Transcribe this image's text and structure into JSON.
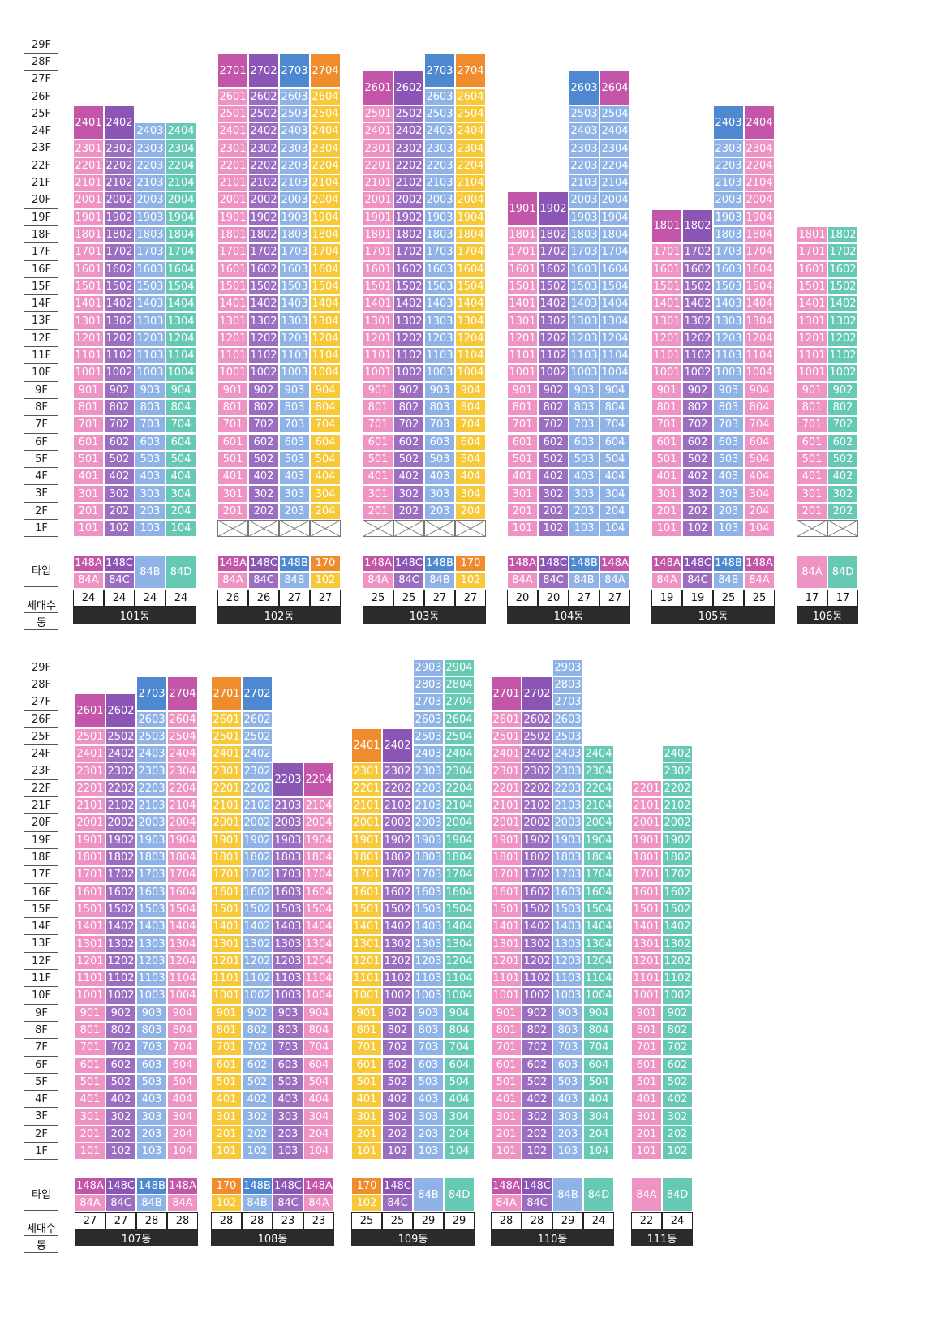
{
  "colors": {
    "pink": "#ef92c4",
    "purple": "#9b6ec2",
    "blue": "#8fb3e6",
    "teal": "#66c9b4",
    "yellow": "#f7c837",
    "orange": "#f19a3e",
    "purple_dark": "#8b55b5",
    "blue_dark": "#4d88d1",
    "magenta_dark": "#c356a8",
    "orange_dark": "#ef8c2d"
  },
  "floor_labels": [
    "29F",
    "28F",
    "27F",
    "26F",
    "25F",
    "24F",
    "23F",
    "22F",
    "21F",
    "20F",
    "19F",
    "18F",
    "17F",
    "16F",
    "15F",
    "14F",
    "13F",
    "12F",
    "11F",
    "10F",
    "9F",
    "8F",
    "7F",
    "6F",
    "5F",
    "4F",
    "3F",
    "2F",
    "1F"
  ],
  "row_labels": {
    "type": "타입",
    "households": "세대수",
    "building": "동"
  },
  "buildings_top": [
    {
      "name": "101동",
      "lines": [
        {
          "top_floor": 25,
          "min_floor": 1,
          "color": "pink",
          "top_color": "magenta_dark",
          "top_double": true,
          "type": [
            "148A",
            "84A"
          ],
          "count": "24"
        },
        {
          "top_floor": 25,
          "min_floor": 1,
          "color": "purple",
          "top_color": "purple_dark",
          "top_double": true,
          "type": [
            "148C",
            "84C"
          ],
          "count": "24"
        },
        {
          "top_floor": 24,
          "min_floor": 1,
          "color": "blue",
          "top_color": null,
          "top_double": false,
          "type": [
            "84B"
          ],
          "count": "24"
        },
        {
          "top_floor": 24,
          "min_floor": 1,
          "color": "teal",
          "top_color": null,
          "top_double": false,
          "type": [
            "84D"
          ],
          "count": "24"
        }
      ]
    },
    {
      "name": "102동",
      "lines": [
        {
          "top_floor": 28,
          "min_floor": 2,
          "color": "pink",
          "top_color": "magenta_dark",
          "top_double": true,
          "type": [
            "148A",
            "84A"
          ],
          "count": "26"
        },
        {
          "top_floor": 28,
          "min_floor": 2,
          "color": "purple",
          "top_color": "purple_dark",
          "top_double": true,
          "type": [
            "148C",
            "84C"
          ],
          "count": "26"
        },
        {
          "top_floor": 28,
          "min_floor": 2,
          "color": "blue",
          "top_color": "blue_dark",
          "top_double": true,
          "type": [
            "148B",
            "84B"
          ],
          "count": "27"
        },
        {
          "top_floor": 28,
          "min_floor": 2,
          "color": "yellow",
          "top_color": "orange_dark",
          "top_double": true,
          "type": [
            "170",
            "102"
          ],
          "count": "27"
        }
      ]
    },
    {
      "name": "103동",
      "lines": [
        {
          "top_floor": 27,
          "min_floor": 2,
          "color": "pink",
          "top_color": "magenta_dark",
          "top_double": true,
          "type": [
            "148A",
            "84A"
          ],
          "count": "25"
        },
        {
          "top_floor": 27,
          "min_floor": 2,
          "color": "purple",
          "top_color": "purple_dark",
          "top_double": true,
          "type": [
            "148C",
            "84C"
          ],
          "count": "25"
        },
        {
          "top_floor": 28,
          "min_floor": 2,
          "color": "blue",
          "top_color": "blue_dark",
          "top_double": true,
          "type": [
            "148B",
            "84B"
          ],
          "count": "27"
        },
        {
          "top_floor": 28,
          "min_floor": 2,
          "color": "yellow",
          "top_color": "orange_dark",
          "top_double": true,
          "type": [
            "170",
            "102"
          ],
          "count": "27"
        }
      ]
    },
    {
      "name": "104동",
      "lines": [
        {
          "top_floor": 20,
          "min_floor": 1,
          "color": "pink",
          "top_color": "magenta_dark",
          "top_double": true,
          "type": [
            "148A",
            "84A"
          ],
          "count": "20"
        },
        {
          "top_floor": 20,
          "min_floor": 1,
          "color": "purple",
          "top_color": "purple_dark",
          "top_double": true,
          "type": [
            "148C",
            "84C"
          ],
          "count": "20"
        },
        {
          "top_floor": 27,
          "min_floor": 1,
          "color": "blue",
          "top_color": "blue_dark",
          "top_double": true,
          "type": [
            "148B",
            "84B"
          ],
          "count": "27"
        },
        {
          "top_floor": 27,
          "min_floor": 1,
          "color": "blue",
          "top_color": "magenta_dark",
          "top_double": true,
          "type": [
            "148A",
            "84A"
          ],
          "count": "27"
        }
      ]
    },
    {
      "name": "105동",
      "lines": [
        {
          "top_floor": 19,
          "min_floor": 1,
          "color": "pink",
          "top_color": "magenta_dark",
          "top_double": true,
          "type": [
            "148A",
            "84A"
          ],
          "count": "19"
        },
        {
          "top_floor": 19,
          "min_floor": 1,
          "color": "purple",
          "top_color": "purple_dark",
          "top_double": true,
          "type": [
            "148C",
            "84C"
          ],
          "count": "19"
        },
        {
          "top_floor": 25,
          "min_floor": 1,
          "color": "blue",
          "top_color": "blue_dark",
          "top_double": true,
          "type": [
            "148B",
            "84B"
          ],
          "count": "25"
        },
        {
          "top_floor": 25,
          "min_floor": 1,
          "color": "pink",
          "top_color": "magenta_dark",
          "top_double": true,
          "type": [
            "148A",
            "84A"
          ],
          "count": "25"
        }
      ]
    },
    {
      "name": "106동",
      "lines": [
        {
          "top_floor": 18,
          "min_floor": 2,
          "color": "pink",
          "top_color": null,
          "top_double": false,
          "type": [
            "84A"
          ],
          "count": "17"
        },
        {
          "top_floor": 18,
          "min_floor": 2,
          "color": "teal",
          "top_color": null,
          "top_double": false,
          "type": [
            "84D"
          ],
          "count": "17"
        }
      ]
    }
  ],
  "buildings_bottom": [
    {
      "name": "107동",
      "lines": [
        {
          "top_floor": 27,
          "min_floor": 1,
          "color": "pink",
          "top_color": "magenta_dark",
          "top_double": true,
          "type": [
            "148A",
            "84A"
          ],
          "count": "27"
        },
        {
          "top_floor": 27,
          "min_floor": 1,
          "color": "purple",
          "top_color": "purple_dark",
          "top_double": true,
          "type": [
            "148C",
            "84C"
          ],
          "count": "27"
        },
        {
          "top_floor": 28,
          "min_floor": 1,
          "color": "blue",
          "top_color": "blue_dark",
          "top_double": true,
          "type": [
            "148B",
            "84B"
          ],
          "count": "28"
        },
        {
          "top_floor": 28,
          "min_floor": 1,
          "color": "pink",
          "top_color": "magenta_dark",
          "top_double": true,
          "type": [
            "148A",
            "84A"
          ],
          "count": "28"
        }
      ]
    },
    {
      "name": "108동",
      "lines": [
        {
          "top_floor": 28,
          "min_floor": 1,
          "color": "yellow",
          "top_color": "orange_dark",
          "top_double": true,
          "type": [
            "170",
            "102"
          ],
          "count": "28"
        },
        {
          "top_floor": 28,
          "min_floor": 1,
          "color": "blue",
          "top_color": "blue_dark",
          "top_double": true,
          "type": [
            "148B",
            "84B"
          ],
          "count": "28"
        },
        {
          "top_floor": 23,
          "min_floor": 1,
          "color": "purple",
          "top_color": "purple_dark",
          "top_double": true,
          "type": [
            "148C",
            "84C"
          ],
          "count": "23"
        },
        {
          "top_floor": 23,
          "min_floor": 1,
          "color": "pink",
          "top_color": "magenta_dark",
          "top_double": true,
          "type": [
            "148A",
            "84A"
          ],
          "count": "23"
        }
      ]
    },
    {
      "name": "109동",
      "lines": [
        {
          "top_floor": 25,
          "min_floor": 1,
          "color": "yellow",
          "top_color": "orange_dark",
          "top_double": true,
          "type": [
            "170",
            "102"
          ],
          "count": "25"
        },
        {
          "top_floor": 25,
          "min_floor": 1,
          "color": "purple",
          "top_color": "purple_dark",
          "top_double": true,
          "type": [
            "148C",
            "84C"
          ],
          "count": "25"
        },
        {
          "top_floor": 29,
          "min_floor": 1,
          "color": "blue",
          "top_color": null,
          "top_double": false,
          "type": [
            "84B"
          ],
          "count": "29"
        },
        {
          "top_floor": 29,
          "min_floor": 1,
          "color": "teal",
          "top_color": null,
          "top_double": false,
          "type": [
            "84D"
          ],
          "count": "29"
        }
      ]
    },
    {
      "name": "110동",
      "lines": [
        {
          "top_floor": 28,
          "min_floor": 1,
          "color": "pink",
          "top_color": "magenta_dark",
          "top_double": true,
          "type": [
            "148A",
            "84A"
          ],
          "count": "28"
        },
        {
          "top_floor": 28,
          "min_floor": 1,
          "color": "purple",
          "top_color": "purple_dark",
          "top_double": true,
          "type": [
            "148C",
            "84C"
          ],
          "count": "28"
        },
        {
          "top_floor": 29,
          "min_floor": 1,
          "color": "blue",
          "top_color": null,
          "top_double": false,
          "type": [
            "84B"
          ],
          "count": "29"
        },
        {
          "top_floor": 24,
          "min_floor": 1,
          "color": "teal",
          "top_color": null,
          "top_double": false,
          "type": [
            "84D"
          ],
          "count": "24"
        }
      ]
    },
    {
      "name": "111동",
      "lines": [
        {
          "top_floor": 22,
          "min_floor": 1,
          "color": "pink",
          "top_color": null,
          "top_double": false,
          "type": [
            "84A"
          ],
          "count": "22"
        },
        {
          "top_floor": 24,
          "min_floor": 1,
          "color": "teal",
          "top_color": null,
          "top_double": false,
          "type": [
            "84D"
          ],
          "count": "24"
        }
      ]
    }
  ]
}
